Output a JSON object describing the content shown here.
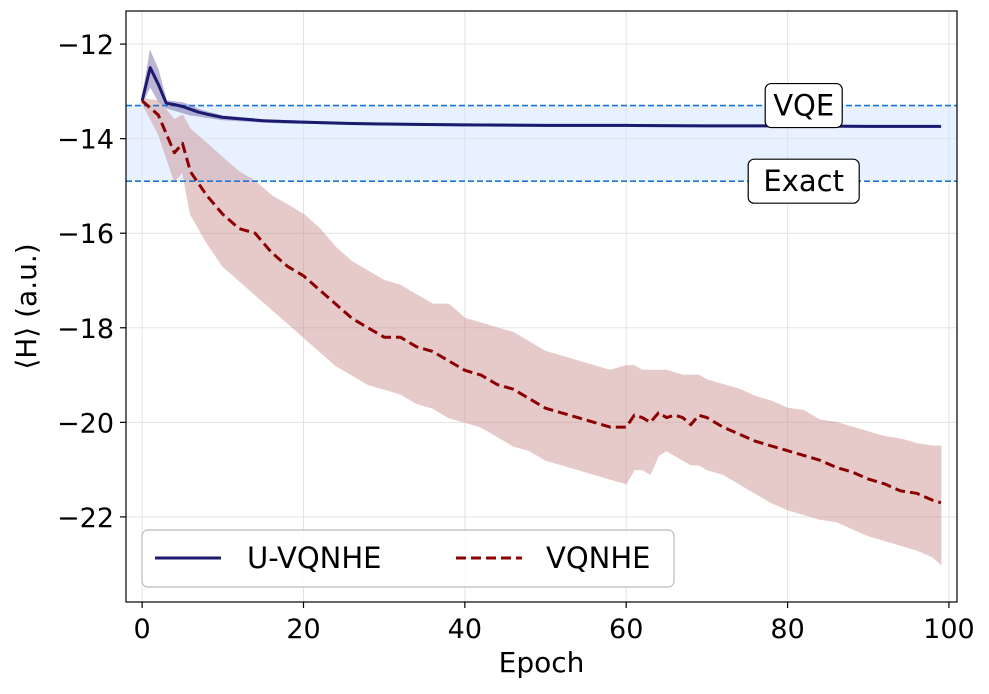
{
  "chart_data": {
    "type": "line",
    "xlabel": "Epoch",
    "ylabel": "⟨H⟩ (a.u.)",
    "xlim": [
      -2,
      101
    ],
    "ylim": [
      -23.8,
      -11.3
    ],
    "xticks": [
      0,
      20,
      40,
      60,
      80,
      100
    ],
    "yticks": [
      -12,
      -14,
      -16,
      -18,
      -20,
      -22
    ],
    "xtick_labels": [
      "0",
      "20",
      "40",
      "60",
      "80",
      "100"
    ],
    "ytick_labels": [
      "−12",
      "−14",
      "−16",
      "−18",
      "−20",
      "−22"
    ],
    "grid": true,
    "legend": {
      "placement": "lower-left",
      "columns": 2
    },
    "reference_lines": [
      {
        "label": "VQE",
        "y": -13.3,
        "color": "#1f77d4",
        "label_x": 82,
        "label_y": -13.3
      },
      {
        "label": "Exact",
        "y": -14.9,
        "color": "#1f77d4",
        "label_x": 82,
        "label_y": -14.9
      }
    ],
    "band_between_reference_lines": {
      "from": -14.9,
      "to": -13.3,
      "color": "#cfe4ff"
    },
    "series": [
      {
        "name": "U-VQNHE",
        "color": "#1a1a6e",
        "style": "solid",
        "band_color": "#6a5a9e",
        "x": [
          0,
          1,
          2,
          3,
          4,
          5,
          6,
          7,
          8,
          10,
          12,
          15,
          18,
          22,
          26,
          30,
          35,
          40,
          50,
          60,
          70,
          80,
          90,
          99
        ],
        "y": [
          -13.2,
          -12.5,
          -12.85,
          -13.25,
          -13.28,
          -13.32,
          -13.38,
          -13.44,
          -13.48,
          -13.55,
          -13.58,
          -13.62,
          -13.64,
          -13.66,
          -13.68,
          -13.69,
          -13.7,
          -13.71,
          -13.72,
          -13.72,
          -13.73,
          -13.73,
          -13.74,
          -13.74
        ],
        "upper": [
          -13.15,
          -12.15,
          -12.55,
          -13.2,
          -13.22,
          -13.24,
          -13.3,
          -13.38,
          -13.43,
          -13.52,
          -13.55,
          -13.6,
          -13.62,
          -13.64,
          -13.66,
          -13.67,
          -13.68,
          -13.69,
          -13.7,
          -13.71,
          -13.72,
          -13.72,
          -13.73,
          -13.73
        ],
        "lower": [
          -13.25,
          -12.9,
          -13.2,
          -13.35,
          -13.4,
          -13.45,
          -13.5,
          -13.52,
          -13.55,
          -13.6,
          -13.62,
          -13.65,
          -13.67,
          -13.68,
          -13.7,
          -13.71,
          -13.72,
          -13.73,
          -13.74,
          -13.74,
          -13.75,
          -13.75,
          -13.76,
          -13.76
        ]
      },
      {
        "name": "VQNHE",
        "color": "#8b0000",
        "style": "dashed",
        "band_color": "#c98a8a",
        "x": [
          0,
          2,
          4,
          5,
          6,
          8,
          10,
          12,
          14,
          16,
          18,
          20,
          22,
          24,
          26,
          28,
          30,
          32,
          34,
          36,
          38,
          40,
          42,
          44,
          46,
          48,
          50,
          52,
          54,
          56,
          58,
          60,
          61,
          62,
          63,
          64,
          65,
          66,
          67,
          68,
          69,
          70,
          72,
          74,
          76,
          78,
          80,
          82,
          84,
          86,
          88,
          90,
          92,
          94,
          96,
          98,
          99
        ],
        "y": [
          -13.2,
          -13.5,
          -14.3,
          -14.1,
          -14.7,
          -15.2,
          -15.6,
          -15.9,
          -16.0,
          -16.4,
          -16.7,
          -16.9,
          -17.2,
          -17.5,
          -17.8,
          -18.0,
          -18.2,
          -18.2,
          -18.4,
          -18.5,
          -18.7,
          -18.9,
          -19.0,
          -19.2,
          -19.3,
          -19.5,
          -19.7,
          -19.8,
          -19.9,
          -20.0,
          -20.1,
          -20.1,
          -19.85,
          -19.9,
          -20.0,
          -19.8,
          -19.9,
          -19.85,
          -19.9,
          -20.05,
          -19.85,
          -19.9,
          -20.1,
          -20.25,
          -20.4,
          -20.5,
          -20.6,
          -20.7,
          -20.8,
          -20.95,
          -21.05,
          -21.2,
          -21.3,
          -21.45,
          -21.5,
          -21.65,
          -21.7
        ],
        "upper": [
          -13.15,
          -13.2,
          -13.6,
          -13.5,
          -13.8,
          -14.1,
          -14.4,
          -14.7,
          -14.9,
          -15.2,
          -15.4,
          -15.6,
          -15.9,
          -16.3,
          -16.6,
          -16.8,
          -17.0,
          -17.1,
          -17.3,
          -17.5,
          -17.5,
          -17.8,
          -17.9,
          -18.0,
          -18.1,
          -18.3,
          -18.5,
          -18.6,
          -18.7,
          -18.8,
          -18.9,
          -18.8,
          -18.8,
          -18.9,
          -18.9,
          -18.9,
          -18.9,
          -18.95,
          -19.0,
          -19.0,
          -19.0,
          -19.1,
          -19.2,
          -19.3,
          -19.45,
          -19.55,
          -19.7,
          -19.75,
          -19.95,
          -20.0,
          -20.1,
          -20.2,
          -20.3,
          -20.35,
          -20.45,
          -20.5,
          -20.5
        ],
        "lower": [
          -13.25,
          -13.9,
          -14.9,
          -14.7,
          -15.6,
          -16.2,
          -16.7,
          -17.0,
          -17.3,
          -17.6,
          -17.9,
          -18.2,
          -18.5,
          -18.8,
          -19.0,
          -19.2,
          -19.3,
          -19.4,
          -19.6,
          -19.7,
          -19.9,
          -20.0,
          -20.1,
          -20.3,
          -20.5,
          -20.6,
          -20.8,
          -20.9,
          -21.0,
          -21.1,
          -21.2,
          -21.3,
          -21.0,
          -21.0,
          -21.1,
          -20.7,
          -20.6,
          -20.7,
          -20.8,
          -20.9,
          -20.9,
          -21.0,
          -21.1,
          -21.3,
          -21.5,
          -21.7,
          -21.85,
          -21.95,
          -22.05,
          -22.1,
          -22.25,
          -22.4,
          -22.5,
          -22.6,
          -22.7,
          -22.85,
          -23.0
        ]
      }
    ]
  }
}
